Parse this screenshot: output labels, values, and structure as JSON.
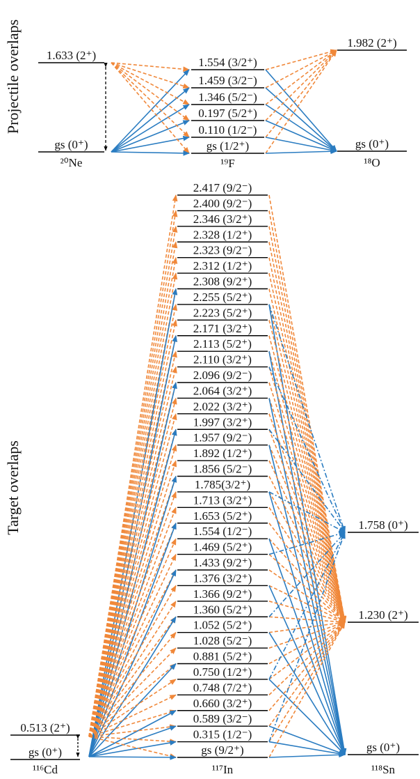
{
  "projectile": {
    "title": "Projectile overlaps",
    "nuclei": [
      {
        "name": "²⁰Ne",
        "levels": [
          "1.633 (2⁺)",
          "gs (0⁺)"
        ]
      },
      {
        "name": "¹⁹F",
        "levels": [
          "1.554 (3/2⁺)",
          "1.459 (3/2⁻)",
          "1.346 (5/2⁻)",
          "0.197 (5/2⁺)",
          "0.110 (1/2⁻)",
          "gs (1/2⁺)"
        ]
      },
      {
        "name": "¹⁸O",
        "levels": [
          "1.982 (2⁺)",
          "gs (0⁺)"
        ]
      }
    ]
  },
  "target": {
    "title": "Target overlaps",
    "nuclei": [
      {
        "name": "¹¹⁶Cd",
        "levels": [
          "0.513 (2⁺)",
          "gs (0⁺)"
        ]
      },
      {
        "name": "¹¹⁷In",
        "levels": [
          "2.417 (9/2⁻)",
          "2.400 (9/2⁻)",
          "2.346 (3/2⁺)",
          "2.328 (1/2⁺)",
          "2.323 (9/2⁻)",
          "2.312 (1/2⁺)",
          "2.308 (9/2⁺)",
          "2.255 (5/2⁺)",
          "2.223 (5/2⁺)",
          "2.171 (3/2⁺)",
          "2.113 (5/2⁺)",
          "2.110 (3/2⁺)",
          "2.096 (9/2⁻)",
          "2.064 (3/2⁺)",
          "2.022 (3/2⁺)",
          "1.997 (3/2⁺)",
          "1.957 (9/2⁻)",
          "1.892 (1/2⁺)",
          "1.856 (5/2⁻)",
          "1.785(3/2⁺)",
          "1.713 (3/2⁺)",
          "1.653 (5/2⁺)",
          "1.554 (1/2⁻)",
          "1.469 (5/2⁺)",
          "1.433 (9/2⁺)",
          "1.376 (3/2⁺)",
          "1.366 (9/2⁺)",
          "1.360 (5/2⁺)",
          "1.052 (5/2⁺)",
          "1.028 (5/2⁻)",
          "0.881 (5/2⁺)",
          "0.750 (1/2⁺)",
          "0.748 (7/2⁺)",
          "0.660 (3/2⁺)",
          "0.589 (3/2⁻)",
          "0.315 (1/2⁻)",
          "gs (9/2⁺)"
        ]
      },
      {
        "name": "¹¹⁸Sn",
        "levels": [
          "1.758 (0⁺)",
          "1.230 (2⁺)",
          "gs (0⁺)"
        ]
      }
    ]
  }
}
